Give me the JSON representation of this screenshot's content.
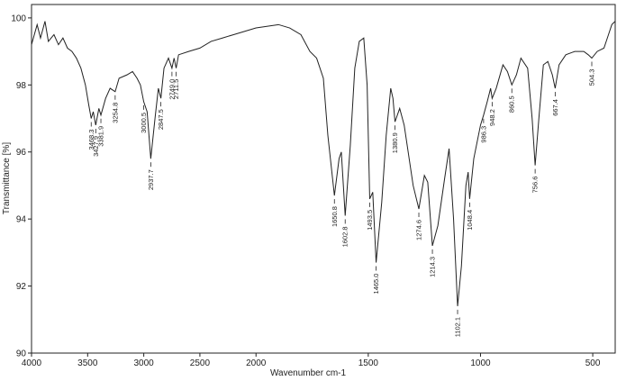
{
  "chart_data": {
    "type": "line",
    "xlabel": "Wavenumber cm-1",
    "ylabel": "Transmittance [%]",
    "xlim": [
      4000,
      400
    ],
    "ylim": [
      90,
      100.4
    ],
    "x_scale_break": 2000,
    "x_scale_factor": 2,
    "xticks": [
      4000,
      3500,
      3000,
      2500,
      2000,
      1500,
      1000,
      500
    ],
    "yticks": [
      90,
      92,
      94,
      96,
      98,
      100
    ],
    "color": "#222222",
    "x": [
      4000,
      3950,
      3920,
      3880,
      3850,
      3800,
      3760,
      3720,
      3680,
      3640,
      3600,
      3560,
      3520,
      3490,
      3468.3,
      3450,
      3427.9,
      3400,
      3381.9,
      3340,
      3300,
      3254.8,
      3220,
      3150,
      3100,
      3060,
      3030,
      3000.5,
      2970,
      2937.7,
      2900,
      2870,
      2847.5,
      2820,
      2780,
      2749.0,
      2730,
      2711.5,
      2690,
      2600,
      2500,
      2400,
      2300,
      2200,
      2100,
      2000,
      1900,
      1850,
      1800,
      1760,
      1730,
      1700,
      1680,
      1650.8,
      1630,
      1620,
      1602.8,
      1580,
      1560,
      1540,
      1520,
      1505,
      1493.5,
      1480,
      1465.0,
      1440,
      1420,
      1400,
      1390,
      1380.9,
      1360,
      1340,
      1300,
      1274.6,
      1250,
      1235,
      1214.3,
      1190,
      1160,
      1140,
      1120,
      1102.1,
      1085,
      1065,
      1055,
      1048.4,
      1030,
      1000,
      986.3,
      970,
      955,
      948.2,
      930,
      900,
      880,
      860.5,
      840,
      820,
      790,
      770,
      756.6,
      740,
      720,
      700,
      680,
      667.4,
      650,
      620,
      580,
      540,
      520,
      504.3,
      480,
      450,
      430,
      415,
      400
    ],
    "values": [
      99.2,
      99.8,
      99.4,
      99.9,
      99.3,
      99.5,
      99.2,
      99.4,
      99.1,
      99.0,
      98.8,
      98.5,
      98.0,
      97.4,
      97.0,
      97.2,
      96.8,
      97.3,
      97.1,
      97.6,
      97.9,
      97.8,
      98.2,
      98.3,
      98.4,
      98.2,
      98.0,
      97.5,
      97.2,
      95.8,
      97.0,
      97.9,
      97.6,
      98.5,
      98.8,
      98.5,
      98.8,
      98.5,
      98.9,
      99.0,
      99.1,
      99.3,
      99.4,
      99.5,
      99.6,
      99.7,
      99.8,
      99.7,
      99.5,
      99.0,
      98.8,
      98.2,
      96.5,
      94.7,
      95.8,
      96.0,
      94.1,
      96.2,
      98.5,
      99.3,
      99.4,
      98.0,
      94.6,
      94.8,
      92.7,
      94.5,
      96.5,
      97.9,
      97.6,
      96.9,
      97.3,
      96.8,
      95.0,
      94.3,
      95.3,
      95.1,
      93.2,
      93.8,
      95.2,
      96.1,
      94.0,
      91.4,
      92.6,
      95.0,
      95.4,
      94.6,
      95.8,
      96.8,
      97.1,
      97.5,
      97.9,
      97.6,
      97.9,
      98.6,
      98.4,
      98.0,
      98.3,
      98.8,
      98.5,
      97.0,
      95.6,
      97.0,
      98.6,
      98.7,
      98.3,
      97.9,
      98.6,
      98.9,
      99.0,
      99.0,
      98.9,
      98.8,
      99.0,
      99.1,
      99.5,
      99.8,
      99.9
    ],
    "peaks": [
      {
        "x": 3468.3,
        "label": "3468.3"
      },
      {
        "x": 3427.9,
        "label": "3427.9"
      },
      {
        "x": 3381.9,
        "label": "3381.9"
      },
      {
        "x": 3254.8,
        "label": "3254.8"
      },
      {
        "x": 3000.5,
        "label": "3000.5"
      },
      {
        "x": 2937.7,
        "label": "2937.7"
      },
      {
        "x": 2847.5,
        "label": "2847.5"
      },
      {
        "x": 2749.0,
        "label": "2749.0"
      },
      {
        "x": 2711.5,
        "label": "2711.5"
      },
      {
        "x": 1650.8,
        "label": "1650.8"
      },
      {
        "x": 1602.8,
        "label": "1602.8"
      },
      {
        "x": 1493.5,
        "label": "1493.5"
      },
      {
        "x": 1465.0,
        "label": "1465.0"
      },
      {
        "x": 1380.9,
        "label": "1380.9"
      },
      {
        "x": 1274.6,
        "label": "1274.6"
      },
      {
        "x": 1214.3,
        "label": "1214.3"
      },
      {
        "x": 1102.1,
        "label": "1102.1"
      },
      {
        "x": 1048.4,
        "label": "1048.4"
      },
      {
        "x": 986.3,
        "label": "986.3"
      },
      {
        "x": 948.2,
        "label": "948.2"
      },
      {
        "x": 860.5,
        "label": "860.5"
      },
      {
        "x": 756.6,
        "label": "756.6"
      },
      {
        "x": 667.4,
        "label": "667.4"
      },
      {
        "x": 504.3,
        "label": "504.3"
      }
    ]
  }
}
